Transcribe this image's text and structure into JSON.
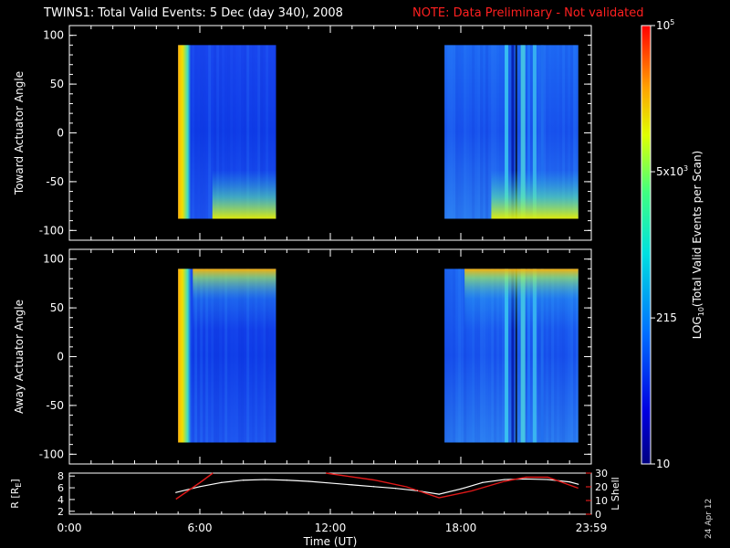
{
  "header": {
    "title": "TWINS1: Total Valid Events:  5 Dec (day 340), 2008",
    "note": "NOTE: Data Preliminary - Not validated"
  },
  "stamp": "24 Apr 12",
  "colors": {
    "background": "#000000",
    "note_red": "#ff2020",
    "r_line": "#ffffff",
    "lshell_line": "#e01818"
  },
  "chart_data": [
    {
      "type": "heatmap",
      "ylabel": "Toward Actuator Angle",
      "ylim": [
        -110,
        110
      ],
      "yticks": [
        -100,
        -50,
        0,
        50,
        100
      ],
      "ytick_labels": [
        "-100",
        "-50",
        "0",
        "50",
        "100"
      ],
      "xlim_hours": [
        0,
        24
      ],
      "data_blocks": [
        {
          "start_hour": 5.0,
          "end_hour": 9.5,
          "angle_range": [
            -88,
            90
          ]
        },
        {
          "start_hour": 17.25,
          "end_hour": 23.4,
          "angle_range": [
            -88,
            90
          ]
        }
      ]
    },
    {
      "type": "heatmap",
      "ylabel": "Away Actuator Angle",
      "ylim": [
        -110,
        110
      ],
      "yticks": [
        -100,
        -50,
        0,
        50,
        100
      ],
      "ytick_labels": [
        "-100",
        "-50",
        "0",
        "50",
        "100"
      ],
      "xlim_hours": [
        0,
        24
      ],
      "data_blocks": [
        {
          "start_hour": 5.0,
          "end_hour": 9.5,
          "angle_range": [
            -88,
            90
          ]
        },
        {
          "start_hour": 17.25,
          "end_hour": 23.4,
          "angle_range": [
            -88,
            90
          ]
        }
      ]
    },
    {
      "type": "line",
      "ylabel_left": "R [R",
      "ylabel_left_sub": "E",
      "ylabel_left_close": "]",
      "ylabel_right": "L Shell",
      "ylim_left": [
        1.5,
        8.5
      ],
      "ylim_right": [
        0,
        30
      ],
      "yticks_left": [
        "2",
        "4",
        "6",
        "8"
      ],
      "yticks_right": [
        "0",
        "10",
        "20",
        "30"
      ],
      "xlabel": "Time (UT)",
      "xtick_labels": [
        "0:00",
        "6:00",
        "12:00",
        "18:00",
        "23:59"
      ],
      "xtick_hours": [
        0,
        6,
        12,
        18,
        24
      ],
      "series": [
        {
          "color": "white",
          "axis": "left",
          "x": [
            4.9,
            6,
            7,
            8,
            9,
            10,
            11,
            12,
            13,
            14,
            15,
            16,
            17,
            18,
            19,
            20,
            21,
            22,
            23,
            23.4
          ],
          "y": [
            5.2,
            6.2,
            6.9,
            7.3,
            7.4,
            7.3,
            7.1,
            6.8,
            6.5,
            6.2,
            5.9,
            5.5,
            4.9,
            5.8,
            6.9,
            7.4,
            7.5,
            7.4,
            7.0,
            6.6
          ]
        },
        {
          "color": "red",
          "axis": "right",
          "segments": [
            {
              "x": [
                4.9,
                6.0,
                6.6
              ],
              "y": [
                11,
                23,
                31
              ]
            },
            {
              "x": [
                11.8,
                14.0,
                15.5,
                17.0,
                18.5,
                20.0,
                21.0,
                22.0,
                23.4
              ],
              "y": [
                31,
                25,
                20,
                12,
                17,
                24,
                27,
                27,
                19
              ]
            }
          ]
        }
      ]
    },
    {
      "type": "colorbar",
      "label": "LOG",
      "label_sub": "10",
      "label_rest": "(Total Valid Events per Scan)",
      "scale": "log",
      "range": [
        10,
        100000
      ],
      "tick_values": [
        10,
        215,
        4640,
        100000
      ],
      "tick_labels": [
        {
          "main": "10",
          "exp": ""
        },
        {
          "main": "215",
          "exp": ""
        },
        {
          "main": "5x10",
          "exp": "3"
        },
        {
          "main": "10",
          "exp": "5"
        }
      ]
    }
  ]
}
